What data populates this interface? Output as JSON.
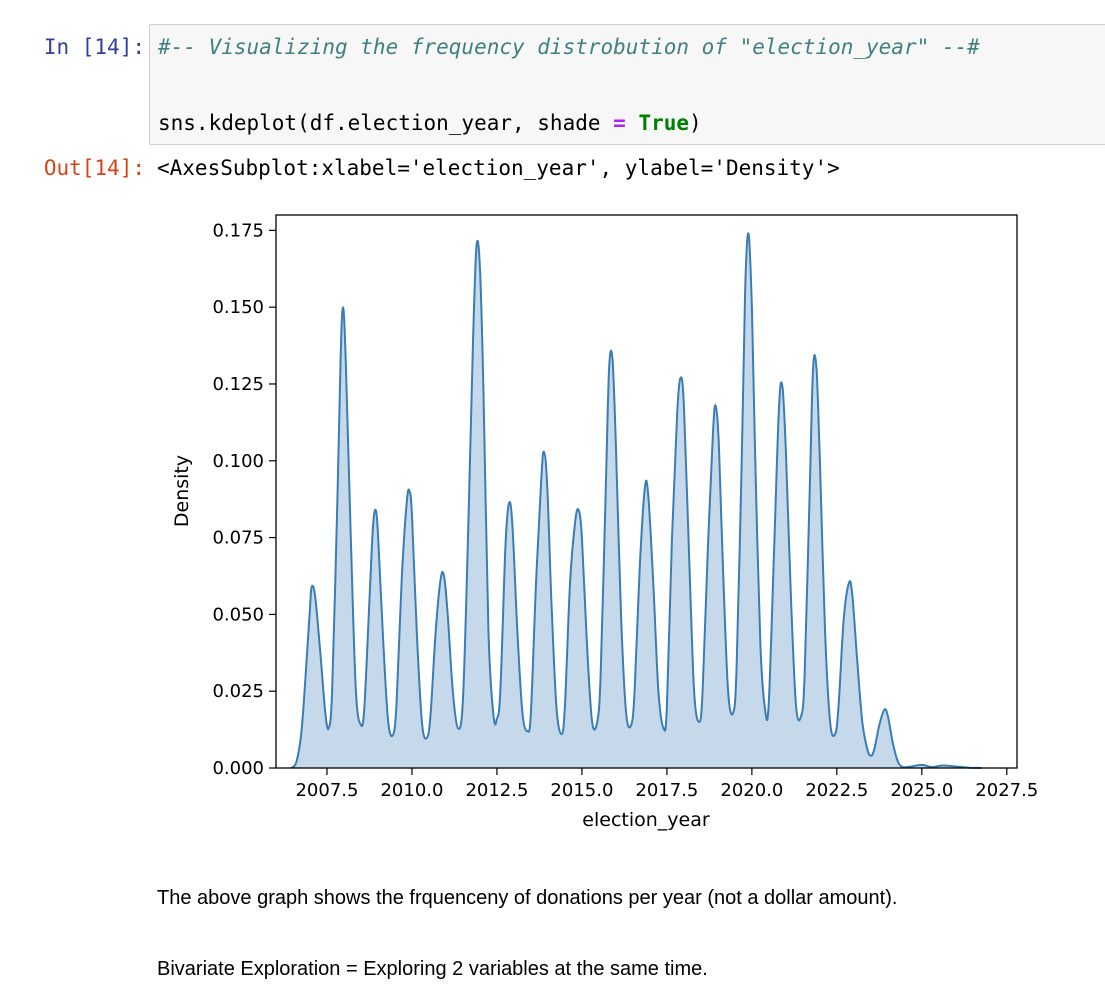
{
  "cell": {
    "in_prompt": "In [14]:",
    "out_prompt": "Out[14]:",
    "code": {
      "comment": "#-- Visualizing the frequency distrobution of \"election_year\" --#",
      "line2_call": "sns.kdeplot(df.election_year, shade ",
      "line2_op": "=",
      "line2_space": " ",
      "line2_kw": "True",
      "line2_close": ")"
    },
    "output_text": "<AxesSubplot:xlabel='election_year', ylabel='Density'>"
  },
  "markdown": {
    "p1": "The above graph shows the frquenceny of donations per year (not a dollar amount).",
    "p2": "Bivariate Exploration = Exploring 2 variables at the same time."
  },
  "colors": {
    "fill": "#c6d9ea",
    "line": "#3a7db5",
    "in_prompt": "#303f9f",
    "out_prompt": "#d84315"
  },
  "chart_data": {
    "type": "area",
    "xlabel": "election_year",
    "ylabel": "Density",
    "xlim": [
      2006.0,
      2027.8
    ],
    "ylim": [
      0,
      0.18
    ],
    "xticks": [
      2007.5,
      2010.0,
      2012.5,
      2015.0,
      2017.5,
      2020.0,
      2022.5,
      2025.0,
      2027.5
    ],
    "xtick_labels": [
      "2007.5",
      "2010.0",
      "2012.5",
      "2015.0",
      "2017.5",
      "2020.0",
      "2022.5",
      "2025.0",
      "2027.5"
    ],
    "yticks": [
      0,
      0.025,
      0.05,
      0.075,
      0.1,
      0.125,
      0.15,
      0.175
    ],
    "ytick_labels": [
      "0.000",
      "0.025",
      "0.050",
      "0.075",
      "0.100",
      "0.125",
      "0.150",
      "0.175"
    ],
    "grid": false,
    "points": [
      [
        2006.45,
        0.0
      ],
      [
        2006.6,
        0.002
      ],
      [
        2006.75,
        0.012
      ],
      [
        2006.9,
        0.035
      ],
      [
        2007.0,
        0.052
      ],
      [
        2007.05,
        0.059
      ],
      [
        2007.15,
        0.056
      ],
      [
        2007.3,
        0.038
      ],
      [
        2007.45,
        0.018
      ],
      [
        2007.55,
        0.013
      ],
      [
        2007.65,
        0.025
      ],
      [
        2007.8,
        0.085
      ],
      [
        2007.9,
        0.133
      ],
      [
        2007.97,
        0.15
      ],
      [
        2008.05,
        0.133
      ],
      [
        2008.2,
        0.075
      ],
      [
        2008.35,
        0.025
      ],
      [
        2008.5,
        0.014
      ],
      [
        2008.6,
        0.02
      ],
      [
        2008.75,
        0.055
      ],
      [
        2008.85,
        0.078
      ],
      [
        2008.93,
        0.084
      ],
      [
        2009.0,
        0.076
      ],
      [
        2009.15,
        0.042
      ],
      [
        2009.3,
        0.015
      ],
      [
        2009.45,
        0.011
      ],
      [
        2009.55,
        0.022
      ],
      [
        2009.7,
        0.062
      ],
      [
        2009.85,
        0.087
      ],
      [
        2009.93,
        0.09
      ],
      [
        2010.0,
        0.082
      ],
      [
        2010.15,
        0.042
      ],
      [
        2010.3,
        0.014
      ],
      [
        2010.45,
        0.01
      ],
      [
        2010.55,
        0.018
      ],
      [
        2010.7,
        0.045
      ],
      [
        2010.85,
        0.062
      ],
      [
        2010.95,
        0.062
      ],
      [
        2011.05,
        0.05
      ],
      [
        2011.2,
        0.025
      ],
      [
        2011.35,
        0.013
      ],
      [
        2011.5,
        0.022
      ],
      [
        2011.65,
        0.075
      ],
      [
        2011.8,
        0.14
      ],
      [
        2011.9,
        0.17
      ],
      [
        2012.0,
        0.163
      ],
      [
        2012.1,
        0.125
      ],
      [
        2012.25,
        0.045
      ],
      [
        2012.4,
        0.017
      ],
      [
        2012.5,
        0.016
      ],
      [
        2012.6,
        0.025
      ],
      [
        2012.75,
        0.072
      ],
      [
        2012.85,
        0.086
      ],
      [
        2012.95,
        0.08
      ],
      [
        2013.1,
        0.045
      ],
      [
        2013.25,
        0.018
      ],
      [
        2013.4,
        0.012
      ],
      [
        2013.5,
        0.018
      ],
      [
        2013.65,
        0.06
      ],
      [
        2013.8,
        0.093
      ],
      [
        2013.88,
        0.103
      ],
      [
        2013.98,
        0.092
      ],
      [
        2014.1,
        0.055
      ],
      [
        2014.25,
        0.02
      ],
      [
        2014.4,
        0.011
      ],
      [
        2014.5,
        0.02
      ],
      [
        2014.65,
        0.06
      ],
      [
        2014.8,
        0.08
      ],
      [
        2014.9,
        0.084
      ],
      [
        2015.0,
        0.075
      ],
      [
        2015.15,
        0.04
      ],
      [
        2015.3,
        0.015
      ],
      [
        2015.45,
        0.015
      ],
      [
        2015.55,
        0.03
      ],
      [
        2015.7,
        0.09
      ],
      [
        2015.8,
        0.13
      ],
      [
        2015.9,
        0.133
      ],
      [
        2016.0,
        0.105
      ],
      [
        2016.15,
        0.05
      ],
      [
        2016.3,
        0.018
      ],
      [
        2016.45,
        0.014
      ],
      [
        2016.55,
        0.025
      ],
      [
        2016.7,
        0.065
      ],
      [
        2016.85,
        0.091
      ],
      [
        2016.95,
        0.089
      ],
      [
        2017.1,
        0.06
      ],
      [
        2017.25,
        0.025
      ],
      [
        2017.4,
        0.013
      ],
      [
        2017.5,
        0.02
      ],
      [
        2017.65,
        0.075
      ],
      [
        2017.8,
        0.115
      ],
      [
        2017.9,
        0.127
      ],
      [
        2018.0,
        0.118
      ],
      [
        2018.15,
        0.07
      ],
      [
        2018.3,
        0.025
      ],
      [
        2018.45,
        0.015
      ],
      [
        2018.55,
        0.025
      ],
      [
        2018.7,
        0.07
      ],
      [
        2018.85,
        0.108
      ],
      [
        2018.93,
        0.118
      ],
      [
        2019.03,
        0.105
      ],
      [
        2019.15,
        0.065
      ],
      [
        2019.3,
        0.025
      ],
      [
        2019.45,
        0.018
      ],
      [
        2019.55,
        0.033
      ],
      [
        2019.7,
        0.1
      ],
      [
        2019.8,
        0.155
      ],
      [
        2019.9,
        0.174
      ],
      [
        2020.0,
        0.15
      ],
      [
        2020.1,
        0.1
      ],
      [
        2020.25,
        0.04
      ],
      [
        2020.4,
        0.018
      ],
      [
        2020.5,
        0.022
      ],
      [
        2020.65,
        0.07
      ],
      [
        2020.8,
        0.118
      ],
      [
        2020.9,
        0.124
      ],
      [
        2021.0,
        0.103
      ],
      [
        2021.15,
        0.055
      ],
      [
        2021.3,
        0.02
      ],
      [
        2021.45,
        0.017
      ],
      [
        2021.55,
        0.03
      ],
      [
        2021.7,
        0.09
      ],
      [
        2021.8,
        0.13
      ],
      [
        2021.9,
        0.13
      ],
      [
        2022.0,
        0.1
      ],
      [
        2022.15,
        0.045
      ],
      [
        2022.3,
        0.015
      ],
      [
        2022.45,
        0.011
      ],
      [
        2022.55,
        0.02
      ],
      [
        2022.7,
        0.048
      ],
      [
        2022.85,
        0.06
      ],
      [
        2022.95,
        0.057
      ],
      [
        2023.1,
        0.035
      ],
      [
        2023.25,
        0.015
      ],
      [
        2023.4,
        0.006
      ],
      [
        2023.5,
        0.004
      ],
      [
        2023.6,
        0.006
      ],
      [
        2023.75,
        0.014
      ],
      [
        2023.9,
        0.019
      ],
      [
        2024.0,
        0.017
      ],
      [
        2024.15,
        0.008
      ],
      [
        2024.3,
        0.002
      ],
      [
        2024.45,
        0.0003
      ],
      [
        2024.7,
        0.0005
      ],
      [
        2025.0,
        0.001
      ],
      [
        2025.3,
        0.0003
      ],
      [
        2025.6,
        0.0008
      ],
      [
        2026.0,
        0.0005
      ],
      [
        2026.4,
        0.0001
      ],
      [
        2026.75,
        0.0
      ]
    ]
  }
}
